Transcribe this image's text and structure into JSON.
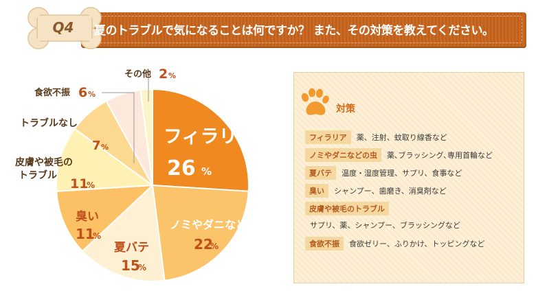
{
  "header": {
    "q_label": "Q4",
    "title": "夏のトラブルで気になることは何ですか？ また、その対策を教えてください。"
  },
  "colors": {
    "header_bar": "#c7641d",
    "title_text": "#ffffff",
    "pie_label": "#c0501a"
  },
  "chart_data": {
    "type": "pie",
    "unit": "%",
    "slices": [
      {
        "label": "フィラリア",
        "value": 26,
        "color": "#f0891f"
      },
      {
        "label": "ノミやダニなどの虫",
        "value": 22,
        "color": "#fbc36a"
      },
      {
        "label": "夏バテ",
        "value": 15,
        "color": "#fef0d2"
      },
      {
        "label": "臭い",
        "value": 11,
        "color": "#fcc065"
      },
      {
        "label": "皮膚や被毛のトラブル",
        "label_lines": [
          "皮膚や被毛の",
          "トラブル"
        ],
        "value": 11,
        "color": "#fff0b4"
      },
      {
        "label": "トラブルなし",
        "value": 7,
        "color": "#fdd98f"
      },
      {
        "label": "食欲不振",
        "value": 6,
        "color": "#fde8dc"
      },
      {
        "label": "その他",
        "value": 2,
        "color": "#fff4c8"
      }
    ]
  },
  "panel": {
    "icon": "paw-icon",
    "title": "対策",
    "items": [
      {
        "tag": "フィラリア",
        "desc": "薬、注射、蚊取り線香など"
      },
      {
        "tag": "ノミやダニなどの虫",
        "desc": "薬､ブラッシング､専用首輪など"
      },
      {
        "tag": "夏バテ",
        "desc": "温度・湿度管理、サプリ、食事など"
      },
      {
        "tag": "臭い",
        "desc": "シャンプー、歯磨き、消臭剤など"
      },
      {
        "tag": "皮膚や被毛のトラブル",
        "desc": "サプリ、薬、シャンプー、ブラッシングなど"
      },
      {
        "tag": "食欲不振",
        "desc": "食欲ゼリー、ふりかけ、トッピングなど"
      }
    ]
  }
}
